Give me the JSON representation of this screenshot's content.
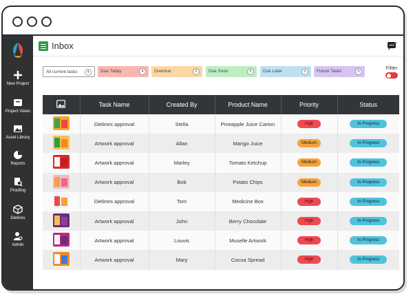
{
  "sidebar": {
    "items": [
      {
        "label": "New Project",
        "icon": "plus-icon"
      },
      {
        "label": "Project Views",
        "icon": "project-views-icon"
      },
      {
        "label": "Asset Library",
        "icon": "image-icon"
      },
      {
        "label": "Reports",
        "icon": "pie-chart-icon"
      },
      {
        "label": "Proofing",
        "icon": "proofing-icon"
      },
      {
        "label": "Dielines",
        "icon": "box-icon"
      },
      {
        "label": "Admin",
        "icon": "user-gear-icon"
      }
    ]
  },
  "header": {
    "title": "Inbox"
  },
  "tabs": [
    {
      "label": "All current tasks",
      "count": "4",
      "color": "#ffffff"
    },
    {
      "label": "Due Today",
      "count": "4",
      "color": "#f7b7b0"
    },
    {
      "label": "Overdue",
      "count": "2",
      "color": "#fbd7a3"
    },
    {
      "label": "Due Soon",
      "count": "5",
      "color": "#bdeec2"
    },
    {
      "label": "Due Later",
      "count": "0",
      "color": "#bfe0f3"
    },
    {
      "label": "Future Tasks",
      "count": "0",
      "color": "#d6c4f2"
    }
  ],
  "filter": {
    "label": "Filter"
  },
  "table": {
    "headers": [
      "Task Name",
      "Created By",
      "Product Name",
      "Priority",
      "Status"
    ],
    "rows": [
      {
        "task": "Dielines approval",
        "created_by": "Stella",
        "product": "Pineapple Juice Carton",
        "priority": "High",
        "status": "In-Progress"
      },
      {
        "task": "Artwork approval",
        "created_by": "Allan",
        "product": "Mango Juice",
        "priority": "Medium",
        "status": "In-Progress"
      },
      {
        "task": "Artwork approval",
        "created_by": "Marley",
        "product": "Tomato Ketchup",
        "priority": "Medium",
        "status": "In-Progress"
      },
      {
        "task": "Artwork approval",
        "created_by": "Bob",
        "product": "Potato Chips",
        "priority": "Medium",
        "status": "In-Progress"
      },
      {
        "task": "Dielines approval",
        "created_by": "Tom",
        "product": "Medicine Box",
        "priority": "High",
        "status": "In-Progress"
      },
      {
        "task": "Artwork approval",
        "created_by": "John",
        "product": "Berry Chocolate",
        "priority": "High",
        "status": "In-Progress"
      },
      {
        "task": "Artwork approval",
        "created_by": "Louvis",
        "product": "Muselle Artwork",
        "priority": "High",
        "status": "In-Progress"
      },
      {
        "task": "Artwork approval",
        "created_by": "Mary",
        "product": "Cocoa Spread",
        "priority": "High",
        "status": "In-Progress"
      }
    ]
  },
  "colors": {
    "high": "#ee4a52",
    "medium": "#f7a23b",
    "in_progress": "#4ec3de",
    "sidebar": "#2f3133"
  }
}
